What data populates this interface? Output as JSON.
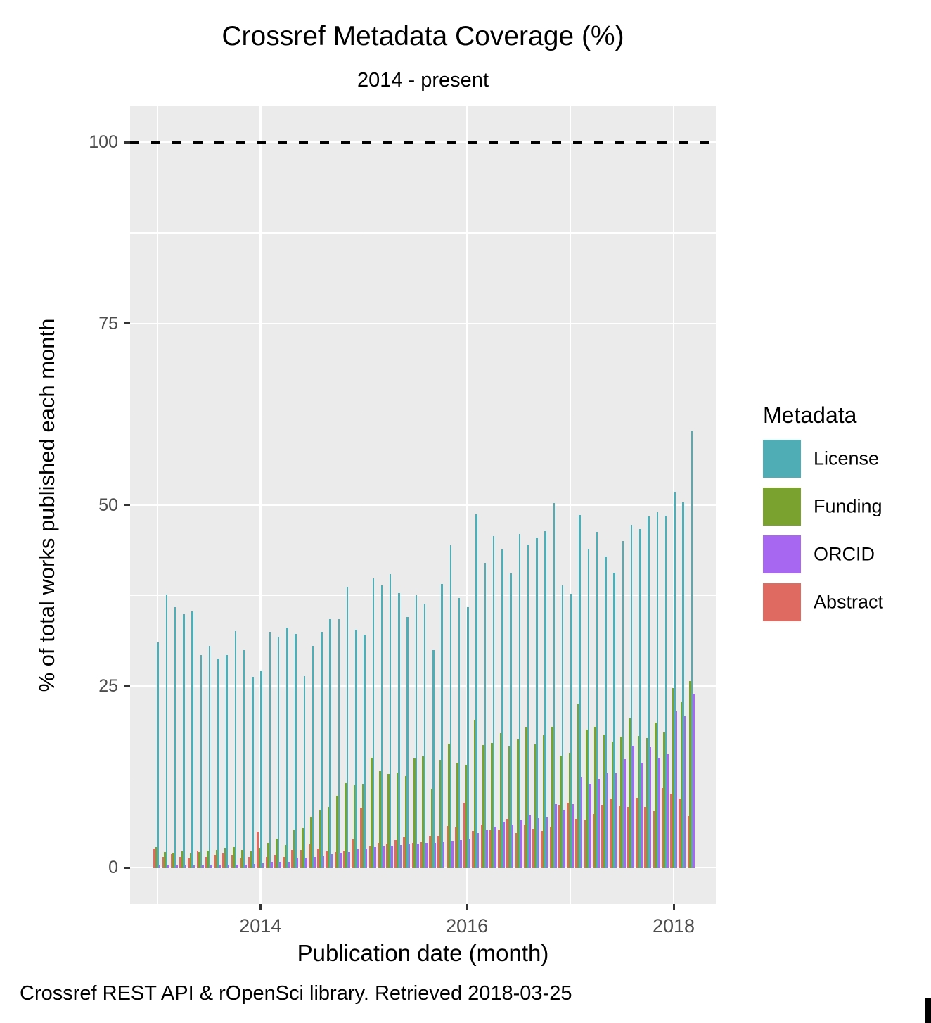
{
  "chart_data": {
    "type": "bar",
    "title": "Crossref Metadata Coverage (%)",
    "subtitle": "2014 - present",
    "caption": "Crossref REST API & rOpenSci library. Retrieved 2018-03-25",
    "xlabel": "Publication date (month)",
    "ylabel": "% of total works published each month",
    "legend_title": "Metadata",
    "legend_position": "right",
    "grid": "on",
    "ylim": [
      0,
      100
    ],
    "y_ticks": [
      0,
      25,
      50,
      75,
      100
    ],
    "y_minor_ticks": [
      12.5,
      37.5,
      62.5,
      87.5
    ],
    "x_ticks": [
      {
        "label": "2014",
        "month": "2014-01"
      },
      {
        "label": "2016",
        "month": "2016-01"
      },
      {
        "label": "2018",
        "month": "2018-01"
      }
    ],
    "reference_line": {
      "y": 100,
      "style": "dashed",
      "color": "#000000"
    },
    "bar_mode": "dodge",
    "dodge_order": [
      "Abstract",
      "Funding",
      "License",
      "ORCID"
    ],
    "months": [
      "2013-01",
      "2013-02",
      "2013-03",
      "2013-04",
      "2013-05",
      "2013-06",
      "2013-07",
      "2013-08",
      "2013-09",
      "2013-10",
      "2013-11",
      "2013-12",
      "2014-01",
      "2014-02",
      "2014-03",
      "2014-04",
      "2014-05",
      "2014-06",
      "2014-07",
      "2014-08",
      "2014-09",
      "2014-10",
      "2014-11",
      "2014-12",
      "2015-01",
      "2015-02",
      "2015-03",
      "2015-04",
      "2015-05",
      "2015-06",
      "2015-07",
      "2015-08",
      "2015-09",
      "2015-10",
      "2015-11",
      "2015-12",
      "2016-01",
      "2016-02",
      "2016-03",
      "2016-04",
      "2016-05",
      "2016-06",
      "2016-07",
      "2016-08",
      "2016-09",
      "2016-10",
      "2016-11",
      "2016-12",
      "2017-01",
      "2017-02",
      "2017-03",
      "2017-04",
      "2017-05",
      "2017-06",
      "2017-07",
      "2017-08",
      "2017-09",
      "2017-10",
      "2017-11",
      "2017-12",
      "2018-01",
      "2018-02",
      "2018-03"
    ],
    "series": [
      {
        "name": "License",
        "color": "#4FADB5",
        "values": [
          31.0,
          37.6,
          35.9,
          34.9,
          35.3,
          29.3,
          30.6,
          28.8,
          29.3,
          32.6,
          30.0,
          26.3,
          27.2,
          32.5,
          31.8,
          33.1,
          32.2,
          26.4,
          30.6,
          32.5,
          34.2,
          34.2,
          38.7,
          32.8,
          32.1,
          39.9,
          38.9,
          40.4,
          37.8,
          34.5,
          37.5,
          36.4,
          30.0,
          39.1,
          44.4,
          37.1,
          35.9,
          48.7,
          42.0,
          45.7,
          43.8,
          40.5,
          46.0,
          44.5,
          45.5,
          46.4,
          50.2,
          38.9,
          37.7,
          48.6,
          43.9,
          46.3,
          42.9,
          40.6,
          45.0,
          47.2,
          46.7,
          48.4,
          49.0,
          48.5,
          51.8,
          50.3,
          60.2
        ]
      },
      {
        "name": "Funding",
        "color": "#7AA22F",
        "values": [
          2.8,
          2.1,
          2.0,
          2.2,
          1.9,
          2.1,
          2.3,
          2.4,
          2.7,
          2.8,
          2.4,
          2.2,
          2.7,
          3.4,
          4.0,
          3.1,
          5.2,
          5.4,
          7.0,
          8.0,
          8.3,
          9.9,
          11.6,
          11.3,
          11.4,
          15.1,
          13.3,
          12.9,
          13.1,
          12.6,
          15.0,
          15.3,
          10.9,
          14.8,
          17.1,
          14.5,
          14.2,
          20.4,
          16.9,
          17.2,
          18.5,
          16.7,
          17.7,
          19.3,
          17.0,
          18.2,
          19.4,
          15.4,
          15.8,
          22.6,
          19.0,
          19.4,
          18.3,
          17.4,
          18.0,
          20.6,
          18.1,
          17.8,
          20.0,
          18.6,
          24.7,
          22.8,
          25.7
        ]
      },
      {
        "name": "ORCID",
        "color": "#A867F0",
        "values": [
          0.3,
          0.3,
          0.3,
          0.3,
          0.3,
          0.3,
          0.3,
          0.4,
          0.4,
          0.4,
          0.4,
          0.5,
          0.6,
          0.8,
          0.8,
          0.8,
          1.3,
          1.3,
          1.5,
          1.6,
          1.8,
          2.0,
          2.1,
          2.5,
          2.6,
          2.8,
          2.9,
          3.0,
          3.1,
          3.3,
          3.3,
          3.4,
          3.4,
          3.5,
          3.6,
          3.8,
          4.0,
          4.8,
          5.1,
          5.6,
          6.3,
          5.9,
          6.5,
          7.2,
          6.8,
          7.0,
          8.7,
          8.0,
          8.7,
          12.4,
          11.5,
          12.2,
          13.0,
          13.0,
          14.9,
          16.8,
          14.5,
          16.6,
          15.1,
          15.6,
          21.5,
          20.9,
          24.0
        ]
      },
      {
        "name": "Abstract",
        "color": "#DF6A61",
        "values": [
          2.6,
          1.5,
          1.8,
          1.5,
          1.3,
          2.3,
          1.5,
          1.7,
          1.9,
          1.7,
          1.3,
          1.5,
          4.9,
          1.5,
          1.7,
          1.5,
          2.4,
          2.4,
          3.2,
          2.6,
          2.2,
          2.1,
          2.3,
          3.9,
          8.2,
          3.0,
          3.4,
          3.3,
          3.8,
          4.2,
          3.4,
          3.5,
          4.4,
          4.4,
          5.7,
          5.5,
          8.9,
          5.0,
          5.9,
          5.1,
          5.2,
          6.7,
          4.8,
          5.9,
          5.3,
          5.0,
          5.6,
          8.6,
          8.9,
          6.7,
          6.6,
          7.4,
          8.6,
          9.5,
          8.5,
          8.3,
          9.6,
          8.3,
          7.9,
          11.0,
          10.2,
          9.5,
          7.1
        ]
      }
    ],
    "colors": {
      "panel_background": "#EBEBEB",
      "grid": "#FFFFFF",
      "axis_text": "#4D4D4D",
      "tick_marks": "#333333",
      "text": "#000000"
    }
  }
}
